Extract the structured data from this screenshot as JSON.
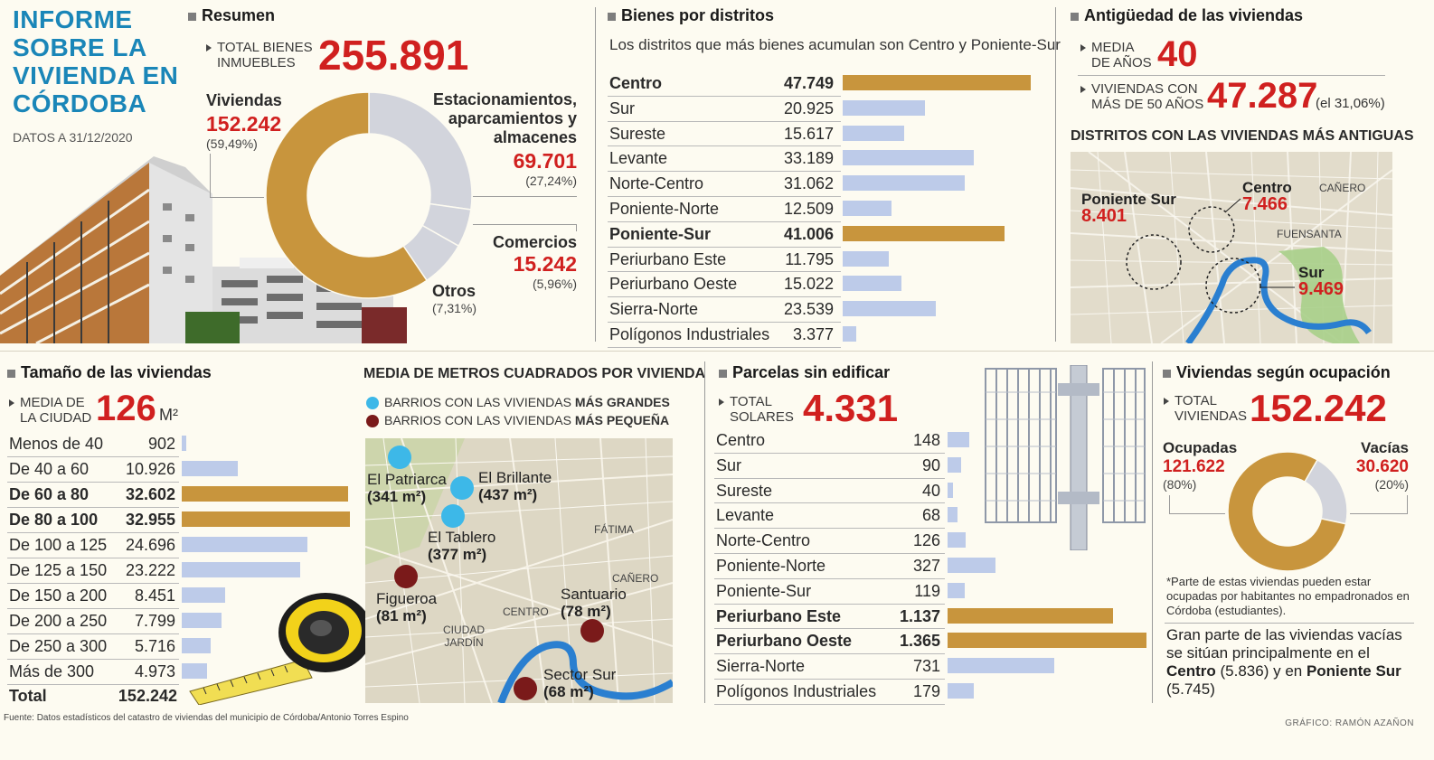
{
  "title_lines": [
    "INFORME",
    "SOBRE LA",
    "VIVIENDA EN",
    "CÓRDOBA"
  ],
  "date": "DATOS A 31/12/2020",
  "resumen": {
    "heading": "Resumen",
    "total_label": [
      "TOTAL BIENES",
      "INMUEBLES"
    ],
    "total_value": "255.891",
    "viviendas": {
      "label": "Viviendas",
      "value": "152.242",
      "pct": "(59,49%)"
    },
    "estacionamientos": {
      "label": [
        "Estacionamientos,",
        "aparcamientos y",
        "almacenes"
      ],
      "value": "69.701",
      "pct": "(27,24%)"
    },
    "comercios": {
      "label": "Comercios",
      "value": "15.242",
      "pct": "(5,96%)"
    },
    "otros": {
      "label": "Otros",
      "pct": "(7,31%)"
    }
  },
  "distritos": {
    "heading": "Bienes por distritos",
    "subtitle": "Los distritos que más bienes acumulan son Centro y Poniente-Sur"
  },
  "antiguedad": {
    "heading": "Antigüedad de las viviendas",
    "media_label": [
      "MEDIA",
      "DE AÑOS"
    ],
    "media_value": "40",
    "viejas_label": [
      "VIVIENDAS CON",
      "MÁS DE 50 AÑOS"
    ],
    "viejas_value": "47.287",
    "viejas_pct": "(el 31,06%)",
    "map_title": "DISTRITOS CON LAS VIVIENDAS MÁS ANTIGUAS",
    "map_places": [
      "CAÑERO",
      "FUENSANTA"
    ],
    "map_districts": [
      {
        "name": "Poniente Sur",
        "value": "8.401"
      },
      {
        "name": "Centro",
        "value": "7.466"
      },
      {
        "name": "Sur",
        "value": "9.469"
      }
    ]
  },
  "tamano": {
    "heading": "Tamaño de las viviendas",
    "media_label": [
      "MEDIA DE",
      "LA CIUDAD"
    ],
    "media_value": "126",
    "media_unit": "M²",
    "total_label": "Total",
    "total_value": "152.242"
  },
  "metros": {
    "heading": "MEDIA DE METROS CUADRADOS POR VIVIENDA",
    "legend_big": [
      "BARRIOS CON LAS VIVIENDAS ",
      "MÁS GRANDES"
    ],
    "legend_small": [
      "BARRIOS CON LAS VIVIENDAS ",
      "MÁS PEQUEÑA"
    ],
    "colors": {
      "big": "#3db8e8",
      "small": "#7a1a1a"
    },
    "places": [
      "FÁTIMA",
      "CAÑERO",
      "CENTRO",
      "CIUDAD JARDÍN"
    ],
    "neighborhoods": [
      {
        "name": "El Patriarca",
        "value": "(341 m²)",
        "type": "big"
      },
      {
        "name": "El Brillante",
        "value": "(437 m²)",
        "type": "big"
      },
      {
        "name": "El Tablero",
        "value": "(377 m²)",
        "type": "big"
      },
      {
        "name": "Figueroa",
        "value": "(81 m²)",
        "type": "small"
      },
      {
        "name": "Santuario",
        "value": "(78 m²)",
        "type": "small"
      },
      {
        "name": "Sector Sur",
        "value": "(68 m²)",
        "type": "small"
      }
    ]
  },
  "parcelas": {
    "heading": "Parcelas sin edificar",
    "total_label": [
      "TOTAL",
      "SOLARES"
    ],
    "total_value": "4.331"
  },
  "ocupacion": {
    "heading": "Viviendas según ocupación",
    "total_label": [
      "TOTAL",
      "VIVIENDAS"
    ],
    "total_value": "152.242",
    "ocupadas": {
      "label": "Ocupadas",
      "value": "121.622",
      "pct": "(80%)"
    },
    "vacias": {
      "label": "Vacías",
      "value": "30.620",
      "pct": "(20%)"
    },
    "note": "*Parte de estas viviendas pueden estar ocupadas por habitantes no empadronados en Córdoba (estudiantes).",
    "text_parts": [
      "Gran parte de las viviendas vacías se sitúan principalmente en el ",
      "Centro",
      " (5.836) y en ",
      "Poniente Sur",
      " (5.745)"
    ]
  },
  "source": "Fuente: Datos estadísticos del catastro de viviendas del municipio de Córdoba/Antonio Torres Espino",
  "credit": "GRÁFICO: RAMÓN AZAÑON",
  "colors": {
    "gold": "#c8953d",
    "lightblue": "#bdcbe9",
    "grey": "#d2d4dc",
    "red": "#d0201f",
    "blue": "#1a86b8"
  },
  "chart_data": [
    {
      "type": "pie",
      "title": "Resumen",
      "categories": [
        "Viviendas",
        "Estacionamientos, aparcamientos y almacenes",
        "Comercios",
        "Otros"
      ],
      "values": [
        59.49,
        27.24,
        5.96,
        7.31
      ]
    },
    {
      "type": "bar",
      "title": "Bienes por distritos",
      "categories": [
        "Centro",
        "Sur",
        "Sureste",
        "Levante",
        "Norte-Centro",
        "Poniente-Norte",
        "Poniente-Sur",
        "Periurbano Este",
        "Periurbano Oeste",
        "Sierra-Norte",
        "Polígonos Industriales"
      ],
      "values": [
        47749,
        20925,
        15617,
        33189,
        31062,
        12509,
        41006,
        11795,
        15022,
        23539,
        3377
      ],
      "labels": [
        "47.749",
        "20.925",
        "15.617",
        "33.189",
        "31.062",
        "12.509",
        "41.006",
        "11.795",
        "15.022",
        "23.539",
        "3.377"
      ],
      "highlight": [
        0,
        6
      ]
    },
    {
      "type": "bar",
      "title": "Tamaño de las viviendas",
      "categories": [
        "Menos de 40",
        "De 40 a 60",
        "De 60 a 80",
        "De 80 a 100",
        "De 100 a 125",
        "De 125 a 150",
        "De 150 a 200",
        "De 200 a 250",
        "De 250 a 300",
        "Más de 300"
      ],
      "values": [
        902,
        10926,
        32602,
        32955,
        24696,
        23222,
        8451,
        7799,
        5716,
        4973
      ],
      "labels": [
        "902",
        "10.926",
        "32.602",
        "32.955",
        "24.696",
        "23.222",
        "8.451",
        "7.799",
        "5.716",
        "4.973"
      ],
      "highlight": [
        2,
        3
      ]
    },
    {
      "type": "bar",
      "title": "Parcelas sin edificar",
      "categories": [
        "Centro",
        "Sur",
        "Sureste",
        "Levante",
        "Norte-Centro",
        "Poniente-Norte",
        "Poniente-Sur",
        "Periurbano Este",
        "Periurbano Oeste",
        "Sierra-Norte",
        "Polígonos Industriales"
      ],
      "values": [
        148,
        90,
        40,
        68,
        126,
        327,
        119,
        1137,
        1365,
        731,
        179
      ],
      "labels": [
        "148",
        "90",
        "40",
        "68",
        "126",
        "327",
        "119",
        "1.137",
        "1.365",
        "731",
        "179"
      ],
      "highlight": [
        7,
        8
      ]
    },
    {
      "type": "pie",
      "title": "Viviendas según ocupación",
      "categories": [
        "Ocupadas",
        "Vacías"
      ],
      "values": [
        80,
        20
      ]
    }
  ]
}
